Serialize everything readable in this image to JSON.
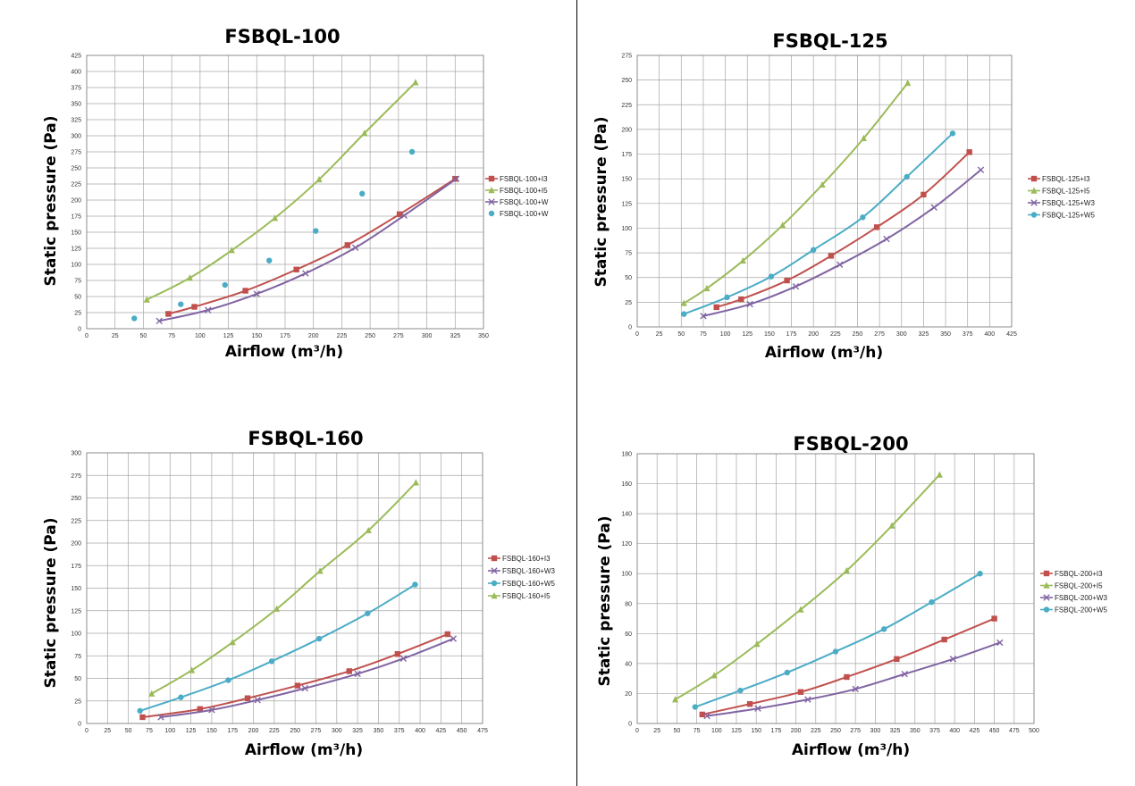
{
  "colors": {
    "I3": "#c0504d",
    "I5": "#9bbb59",
    "W3": "#8064a2",
    "W5": "#4bacc6"
  },
  "chart_data": [
    {
      "type": "line",
      "title": "FSBQL-100",
      "xlabel": "Airflow (m³/h)",
      "ylabel": "Static pressure (Pa)",
      "xlim": [
        0,
        350
      ],
      "ylim": [
        0,
        425
      ],
      "xstep": 25,
      "ystep": 25,
      "grid": true,
      "legend": "right",
      "series": [
        {
          "name": "FSBQL-100+I3",
          "key": "I3",
          "marker": "square",
          "line": true,
          "points": [
            [
              72,
              23
            ],
            [
              95,
              34
            ],
            [
              140,
              59
            ],
            [
              185,
              92
            ],
            [
              230,
              130
            ],
            [
              276,
              178
            ],
            [
              325,
              233
            ]
          ]
        },
        {
          "name": "FSBQL-100+I5",
          "key": "I5",
          "marker": "triangle",
          "line": true,
          "points": [
            [
              53,
              45
            ],
            [
              91,
              79
            ],
            [
              128,
              122
            ],
            [
              166,
              172
            ],
            [
              205,
              232
            ],
            [
              245,
              304
            ],
            [
              290,
              383
            ]
          ]
        },
        {
          "name": "FSBQL-100+W",
          "key": "W3",
          "marker": "x",
          "line": true,
          "points": [
            [
              64,
              12
            ],
            [
              107,
              29
            ],
            [
              150,
              54
            ],
            [
              193,
              86
            ],
            [
              237,
              126
            ],
            [
              280,
              176
            ],
            [
              326,
              233
            ]
          ]
        },
        {
          "name": "FSBQL-100+W",
          "key": "W5",
          "marker": "circle",
          "line": false,
          "points": [
            [
              42,
              16
            ],
            [
              83,
              38
            ],
            [
              122,
              68
            ],
            [
              161,
              106
            ],
            [
              202,
              152
            ],
            [
              243,
              210
            ],
            [
              287,
              275
            ]
          ]
        }
      ]
    },
    {
      "type": "line",
      "title": "FSBQL-125",
      "xlabel": "Airflow (m³/h)",
      "ylabel": "Static pressure (Pa)",
      "xlim": [
        0,
        425
      ],
      "ylim": [
        0,
        275
      ],
      "xstep": 25,
      "ystep": 25,
      "grid": true,
      "legend": "right",
      "series": [
        {
          "name": "FSBQL-125+I3",
          "key": "I3",
          "marker": "square",
          "line": true,
          "points": [
            [
              90,
              20
            ],
            [
              118,
              28
            ],
            [
              170,
              47
            ],
            [
              220,
              72
            ],
            [
              272,
              101
            ],
            [
              325,
              134
            ],
            [
              377,
              177
            ]
          ]
        },
        {
          "name": "FSBQL-125+I5",
          "key": "I5",
          "marker": "triangle",
          "line": true,
          "points": [
            [
              53,
              24
            ],
            [
              79,
              39
            ],
            [
              120,
              67
            ],
            [
              165,
              103
            ],
            [
              210,
              144
            ],
            [
              257,
              191
            ],
            [
              307,
              247
            ]
          ]
        },
        {
          "name": "FSBQL-125+W3",
          "key": "W3",
          "marker": "x",
          "line": true,
          "points": [
            [
              75,
              11
            ],
            [
              128,
              23
            ],
            [
              180,
              41
            ],
            [
              230,
              63
            ],
            [
              283,
              89
            ],
            [
              337,
              121
            ],
            [
              390,
              159
            ]
          ]
        },
        {
          "name": "FSBQL-125+W5",
          "key": "W5",
          "marker": "circle",
          "line": true,
          "points": [
            [
              53,
              13
            ],
            [
              102,
              30
            ],
            [
              152,
              51
            ],
            [
              200,
              78
            ],
            [
              256,
              111
            ],
            [
              306,
              152
            ],
            [
              358,
              196
            ]
          ]
        }
      ]
    },
    {
      "type": "line",
      "title": "FSBQL-160",
      "xlabel": "Airflow (m³/h)",
      "ylabel": "Static pressure (Pa)",
      "xlim": [
        0,
        475
      ],
      "ylim": [
        0,
        300
      ],
      "xstep": 25,
      "ystep": 25,
      "grid": true,
      "legend": "right",
      "series": [
        {
          "name": "FSBQL-160+I3",
          "key": "I3",
          "marker": "square",
          "line": true,
          "points": [
            [
              67,
              7
            ],
            [
              136,
              16
            ],
            [
              193,
              28
            ],
            [
              253,
              42
            ],
            [
              315,
              58
            ],
            [
              373,
              77
            ],
            [
              433,
              99
            ]
          ]
        },
        {
          "name": "FSBQL-160+W3",
          "key": "W3",
          "marker": "x",
          "line": true,
          "points": [
            [
              89,
              7
            ],
            [
              150,
              15
            ],
            [
              205,
              26
            ],
            [
              262,
              39
            ],
            [
              325,
              55
            ],
            [
              380,
              72
            ],
            [
              440,
              94
            ]
          ]
        },
        {
          "name": "FSBQL-160+W5",
          "key": "W5",
          "marker": "circle",
          "line": true,
          "points": [
            [
              64,
              14
            ],
            [
              113,
              29
            ],
            [
              170,
              48
            ],
            [
              222,
              69
            ],
            [
              279,
              94
            ],
            [
              337,
              122
            ],
            [
              394,
              154
            ]
          ]
        },
        {
          "name": "FSBQL-160+I5",
          "key": "I5",
          "marker": "triangle",
          "line": true,
          "points": [
            [
              78,
              33
            ],
            [
              126,
              59
            ],
            [
              175,
              90
            ],
            [
              228,
              127
            ],
            [
              280,
              169
            ],
            [
              338,
              214
            ],
            [
              395,
              267
            ]
          ]
        }
      ]
    },
    {
      "type": "line",
      "title": "FSBQL-200",
      "xlabel": "Airflow (m³/h)",
      "ylabel": "Static pressure (Pa)",
      "xlim": [
        0,
        500
      ],
      "ylim": [
        0,
        180
      ],
      "xstep": 25,
      "ystep": 20,
      "grid": true,
      "legend": "right",
      "series": [
        {
          "name": "FSBQL-200+I3",
          "key": "I3",
          "marker": "square",
          "line": true,
          "points": [
            [
              82,
              6
            ],
            [
              142,
              13
            ],
            [
              206,
              21
            ],
            [
              264,
              31
            ],
            [
              327,
              43
            ],
            [
              387,
              56
            ],
            [
              450,
              70
            ]
          ]
        },
        {
          "name": "FSBQL-200+I5",
          "key": "I5",
          "marker": "triangle",
          "line": true,
          "points": [
            [
              48,
              16
            ],
            [
              97,
              32
            ],
            [
              151,
              53
            ],
            [
              206,
              76
            ],
            [
              264,
              102
            ],
            [
              321,
              132
            ],
            [
              381,
              166
            ]
          ]
        },
        {
          "name": "FSBQL-200+W3",
          "key": "W3",
          "marker": "x",
          "line": true,
          "points": [
            [
              88,
              5
            ],
            [
              152,
              10
            ],
            [
              215,
              16
            ],
            [
              275,
              23
            ],
            [
              337,
              33
            ],
            [
              398,
              43
            ],
            [
              457,
              54
            ]
          ]
        },
        {
          "name": "FSBQL-200+W5",
          "key": "W5",
          "marker": "circle",
          "line": true,
          "points": [
            [
              73,
              11
            ],
            [
              130,
              22
            ],
            [
              189,
              34
            ],
            [
              250,
              48
            ],
            [
              311,
              63
            ],
            [
              371,
              81
            ],
            [
              432,
              100
            ]
          ]
        }
      ]
    }
  ]
}
